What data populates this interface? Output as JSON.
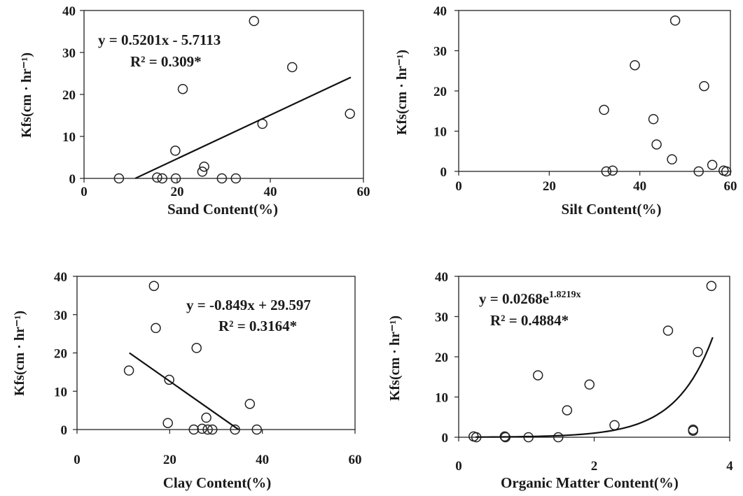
{
  "chart_data": [
    {
      "id": "sand",
      "type": "scatter",
      "xlabel": "Sand Content(%)",
      "ylabel": "Kfs(cm · hr⁻¹)",
      "xlim": [
        0,
        60
      ],
      "ylim": [
        0,
        40
      ],
      "xticks": [
        0,
        20,
        40,
        60
      ],
      "yticks": [
        0,
        10,
        20,
        30,
        40
      ],
      "points": [
        [
          7.5,
          0
        ],
        [
          15.7,
          0.2
        ],
        [
          16.8,
          0
        ],
        [
          19.7,
          0
        ],
        [
          19.6,
          6.6
        ],
        [
          21.2,
          21.3
        ],
        [
          25.4,
          1.6
        ],
        [
          25.8,
          2.8
        ],
        [
          29.6,
          0
        ],
        [
          32.6,
          0
        ],
        [
          36.5,
          37.5
        ],
        [
          38.3,
          13
        ],
        [
          44.7,
          26.5
        ],
        [
          57.1,
          15.4
        ]
      ],
      "trendline": {
        "kind": "linear",
        "slope": 0.5201,
        "intercept": -5.7113,
        "x_range": [
          11,
          57.3
        ]
      },
      "annotations": [
        "y = 0.5201x - 5.7113",
        "R² = 0.309*"
      ]
    },
    {
      "id": "silt",
      "type": "scatter",
      "xlabel": "Silt Content(%)",
      "ylabel": "Kfs(cm · hr⁻¹)",
      "xlim": [
        0,
        60
      ],
      "ylim": [
        0,
        40
      ],
      "xticks": [
        0,
        20,
        40,
        60
      ],
      "yticks": [
        0,
        10,
        20,
        30,
        40
      ],
      "points": [
        [
          32.1,
          15.3
        ],
        [
          32.6,
          0
        ],
        [
          34,
          0.2
        ],
        [
          38.9,
          26.4
        ],
        [
          43,
          13
        ],
        [
          43.7,
          6.7
        ],
        [
          47.1,
          3
        ],
        [
          47.8,
          37.5
        ],
        [
          53,
          0
        ],
        [
          54.2,
          21.2
        ],
        [
          56,
          1.6
        ],
        [
          58.5,
          0.2
        ],
        [
          59.1,
          0
        ]
      ],
      "trendline": null,
      "annotations": []
    },
    {
      "id": "clay",
      "type": "scatter",
      "xlabel": "Clay Content(%)",
      "ylabel": "Kfs(cm · hr⁻¹)",
      "xlim": [
        0,
        60
      ],
      "ylim": [
        0,
        40
      ],
      "xticks": [
        0,
        20,
        40,
        60
      ],
      "yticks": [
        0,
        10,
        20,
        30,
        40
      ],
      "points": [
        [
          11.2,
          15.4
        ],
        [
          16.6,
          37.5
        ],
        [
          17,
          26.5
        ],
        [
          19.6,
          1.7
        ],
        [
          19.9,
          13
        ],
        [
          25.2,
          0
        ],
        [
          25.8,
          21.3
        ],
        [
          27,
          0.2
        ],
        [
          27.9,
          3.1
        ],
        [
          28.2,
          0
        ],
        [
          29.2,
          0
        ],
        [
          34.1,
          0
        ],
        [
          37.3,
          6.7
        ],
        [
          38.8,
          0
        ]
      ],
      "trendline": {
        "kind": "linear",
        "slope": -0.849,
        "intercept": 29.597,
        "x_range": [
          11.3,
          34.9
        ]
      },
      "annotations": [
        "y = -0.849x + 29.597",
        "R² = 0.3164*"
      ]
    },
    {
      "id": "om",
      "type": "scatter",
      "xlabel": "Organic Matter Content(%)",
      "ylabel": "Kfs(cm · hr⁻¹)",
      "xlim": [
        0,
        4
      ],
      "ylim": [
        0,
        40
      ],
      "xticks": [
        0,
        2,
        4
      ],
      "yticks": [
        0,
        10,
        20,
        30,
        40
      ],
      "points": [
        [
          0.22,
          0.2
        ],
        [
          0.26,
          0
        ],
        [
          0.68,
          0.2
        ],
        [
          0.69,
          0
        ],
        [
          1.03,
          0
        ],
        [
          1.17,
          15.4
        ],
        [
          1.47,
          0
        ],
        [
          1.6,
          6.7
        ],
        [
          1.93,
          13.1
        ],
        [
          2.3,
          3
        ],
        [
          3.09,
          26.5
        ],
        [
          3.46,
          1.6
        ],
        [
          3.46,
          1.9
        ],
        [
          3.53,
          21.2
        ],
        [
          3.73,
          37.6
        ]
      ],
      "trendline": {
        "kind": "exponential",
        "a": 0.0268,
        "b": 1.8219,
        "x_range": [
          0.25,
          3.75
        ]
      },
      "annotations": [
        "y = 0.0268e",
        "1.8219x",
        "R² = 0.4884*"
      ]
    }
  ]
}
